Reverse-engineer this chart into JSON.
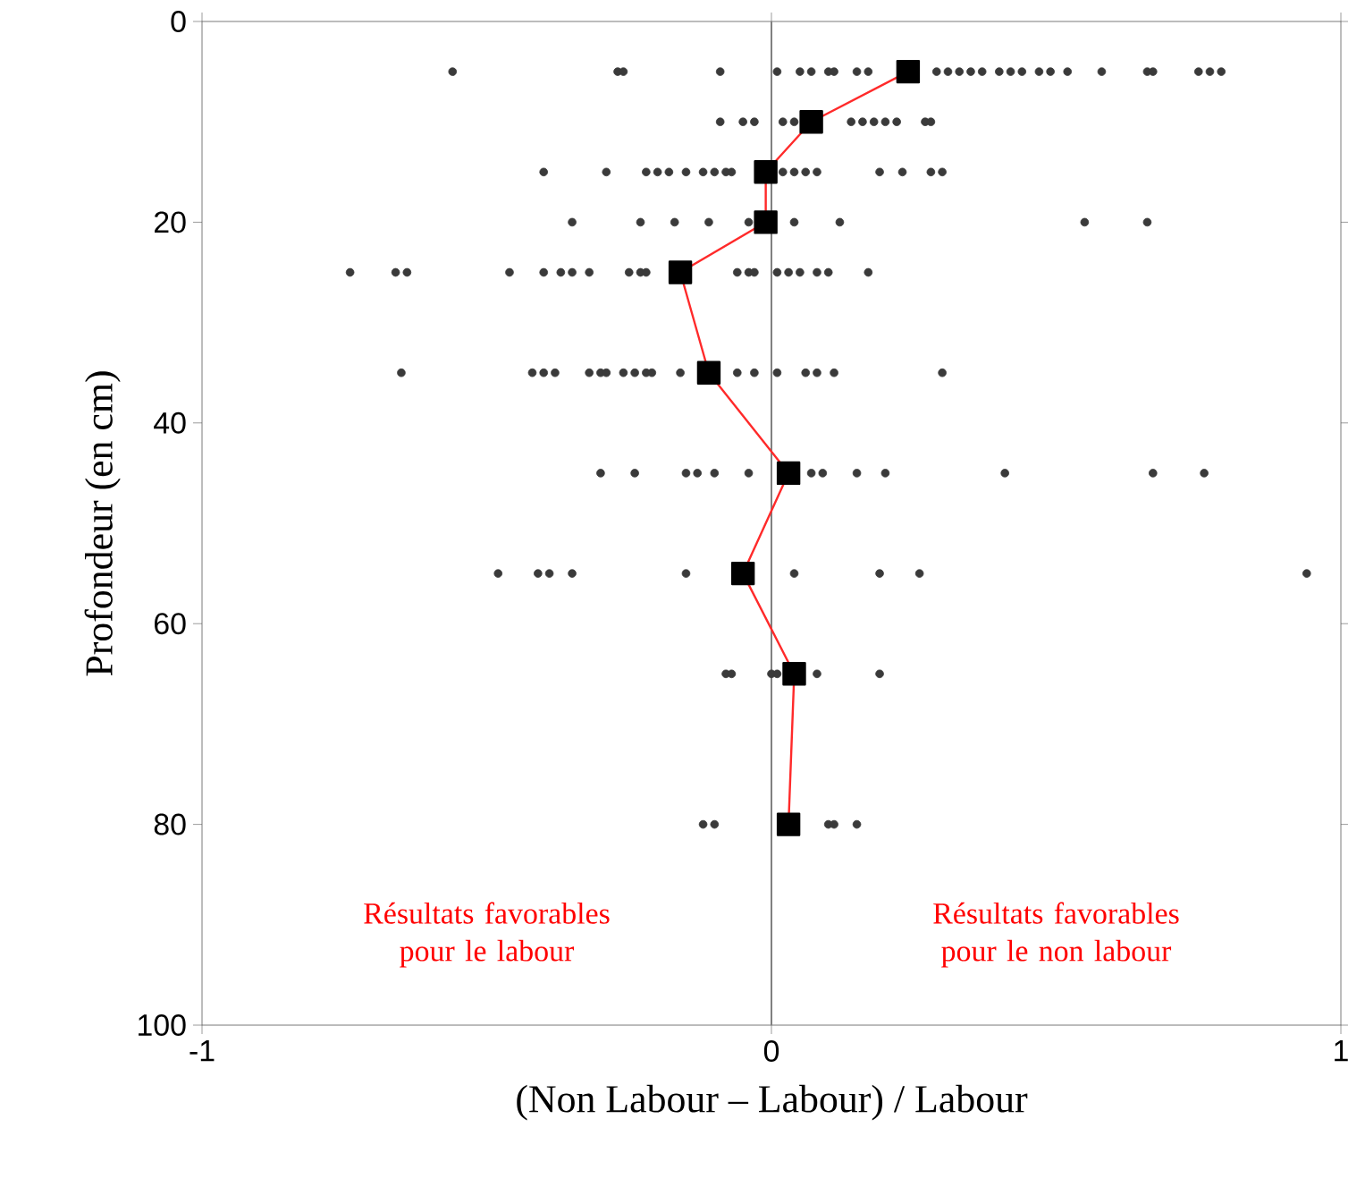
{
  "chart_data": {
    "type": "scatter",
    "xlabel": "(Non Labour – Labour) / Labour",
    "ylabel": "Profondeur (en cm)",
    "xlim": [
      -1,
      1
    ],
    "xticks": [
      -1,
      0,
      1
    ],
    "ylim": [
      100,
      0
    ],
    "yticks": [
      0,
      20,
      40,
      60,
      80,
      100
    ],
    "grid": false,
    "ref_lines": [
      {
        "axis": "x",
        "value": 0,
        "color": "#808080"
      }
    ],
    "annotations": [
      "Résultats favorables pour le labour",
      "Résultats favorables pour le non labour"
    ],
    "series": [
      {
        "color": "#3a3a3a",
        "marker": "circle",
        "x": [
          -0.56,
          -0.27,
          -0.26,
          -0.09,
          0.01,
          0.05,
          0.07,
          0.1,
          0.11,
          0.15,
          0.17,
          0.29,
          0.31,
          0.33,
          0.35,
          0.37,
          0.4,
          0.42,
          0.44,
          0.47,
          0.49,
          0.52,
          0.58,
          0.66,
          0.67,
          0.75,
          0.77,
          0.79,
          -0.09,
          -0.05,
          -0.03,
          0.02,
          0.04,
          0.14,
          0.16,
          0.18,
          0.2,
          0.22,
          0.27,
          0.28,
          -0.4,
          -0.29,
          -0.22,
          -0.2,
          -0.18,
          -0.15,
          -0.12,
          -0.1,
          -0.08,
          -0.07,
          0.02,
          0.04,
          0.06,
          0.08,
          0.19,
          0.23,
          0.28,
          0.3,
          -0.35,
          -0.23,
          -0.17,
          -0.11,
          -0.04,
          0.04,
          0.12,
          0.55,
          0.66,
          -0.74,
          -0.66,
          -0.64,
          -0.46,
          -0.4,
          -0.37,
          -0.35,
          -0.32,
          -0.25,
          -0.23,
          -0.22,
          -0.06,
          -0.04,
          -0.03,
          0.01,
          0.03,
          0.05,
          0.08,
          0.1,
          0.17,
          -0.65,
          -0.42,
          -0.4,
          -0.38,
          -0.32,
          -0.3,
          -0.29,
          -0.26,
          -0.24,
          -0.22,
          -0.21,
          -0.16,
          -0.06,
          -0.03,
          0.01,
          0.06,
          0.08,
          0.11,
          0.3,
          -0.3,
          -0.24,
          -0.15,
          -0.13,
          -0.1,
          -0.04,
          0.07,
          0.09,
          0.15,
          0.2,
          0.41,
          0.67,
          0.76,
          -0.48,
          -0.41,
          -0.39,
          -0.35,
          -0.15,
          0.04,
          0.19,
          0.26,
          0.94,
          -0.08,
          -0.07,
          0.0,
          0.01,
          0.08,
          0.19,
          -0.12,
          -0.1,
          0.1,
          0.11,
          0.15
        ],
        "values": [
          5,
          5,
          5,
          5,
          5,
          5,
          5,
          5,
          5,
          5,
          5,
          5,
          5,
          5,
          5,
          5,
          5,
          5,
          5,
          5,
          5,
          5,
          5,
          5,
          5,
          5,
          5,
          5,
          10,
          10,
          10,
          10,
          10,
          10,
          10,
          10,
          10,
          10,
          10,
          10,
          15,
          15,
          15,
          15,
          15,
          15,
          15,
          15,
          15,
          15,
          15,
          15,
          15,
          15,
          15,
          15,
          15,
          15,
          20,
          20,
          20,
          20,
          20,
          20,
          20,
          20,
          20,
          25,
          25,
          25,
          25,
          25,
          25,
          25,
          25,
          25,
          25,
          25,
          25,
          25,
          25,
          25,
          25,
          25,
          25,
          25,
          25,
          35,
          35,
          35,
          35,
          35,
          35,
          35,
          35,
          35,
          35,
          35,
          35,
          35,
          35,
          35,
          35,
          35,
          35,
          35,
          45,
          45,
          45,
          45,
          45,
          45,
          45,
          45,
          45,
          45,
          45,
          45,
          45,
          55,
          55,
          55,
          55,
          55,
          55,
          55,
          55,
          55,
          65,
          65,
          65,
          65,
          65,
          65,
          80,
          80,
          80,
          80,
          80
        ]
      },
      {
        "type": "line",
        "color": "#ff2a2a",
        "marker": "square",
        "line_style": "solid",
        "x": [
          0.24,
          0.07,
          -0.01,
          -0.01,
          -0.16,
          -0.11,
          0.03,
          -0.05,
          0.04,
          0.03
        ],
        "values": [
          5,
          10,
          15,
          20,
          25,
          35,
          45,
          55,
          65,
          80
        ]
      }
    ]
  }
}
